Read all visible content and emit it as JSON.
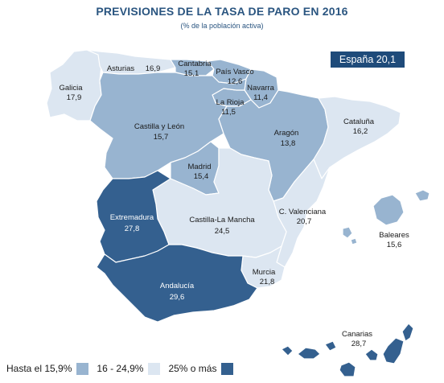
{
  "title": "PREVISIONES DE LA TASA DE PARO EN 2016",
  "subtitle": "(% de la población activa)",
  "national": {
    "label": "España",
    "value": "20,1"
  },
  "colors": {
    "light": "#dce6f1",
    "medium": "#98b4d0",
    "dark": "#34608f",
    "outline": "#ffffff",
    "badge": "#1f4b7a"
  },
  "legend": [
    {
      "label": "Hasta el 15,9%",
      "color": "#98b4d0"
    },
    {
      "label": "16 - 24,9%",
      "color": "#dce6f1"
    },
    {
      "label": "25% o más",
      "color": "#34608f"
    }
  ],
  "regions": [
    {
      "id": "galicia",
      "name": "Galicia",
      "value": "17,9",
      "tier": "light"
    },
    {
      "id": "asturias",
      "name": "Asturias",
      "value": "16,9",
      "tier": "light"
    },
    {
      "id": "cantabria",
      "name": "Cantabria",
      "value": "15,1",
      "tier": "medium"
    },
    {
      "id": "pais-vasco",
      "name": "País Vasco",
      "value": "12,6",
      "tier": "medium"
    },
    {
      "id": "navarra",
      "name": "Navarra",
      "value": "11,4",
      "tier": "medium"
    },
    {
      "id": "la-rioja",
      "name": "La Rioja",
      "value": "11,5",
      "tier": "medium"
    },
    {
      "id": "aragon",
      "name": "Aragón",
      "value": "13,8",
      "tier": "medium"
    },
    {
      "id": "cataluna",
      "name": "Cataluña",
      "value": "16,2",
      "tier": "light"
    },
    {
      "id": "castilla-leon",
      "name": "Castilla y León",
      "value": "15,7",
      "tier": "medium"
    },
    {
      "id": "madrid",
      "name": "Madrid",
      "value": "15,4",
      "tier": "medium"
    },
    {
      "id": "extremadura",
      "name": "Extremadura",
      "value": "27,8",
      "tier": "dark"
    },
    {
      "id": "castilla-la-mancha",
      "name": "Castilla-La Mancha",
      "value": "24,5",
      "tier": "light"
    },
    {
      "id": "c-valenciana",
      "name": "C. Valenciana",
      "value": "20,7",
      "tier": "light"
    },
    {
      "id": "baleares",
      "name": "Baleares",
      "value": "15,6",
      "tier": "medium"
    },
    {
      "id": "murcia",
      "name": "Murcia",
      "value": "21,8",
      "tier": "light"
    },
    {
      "id": "andalucia",
      "name": "Andalucía",
      "value": "29,6",
      "tier": "dark"
    },
    {
      "id": "canarias",
      "name": "Canarias",
      "value": "28,7",
      "tier": "dark"
    }
  ]
}
